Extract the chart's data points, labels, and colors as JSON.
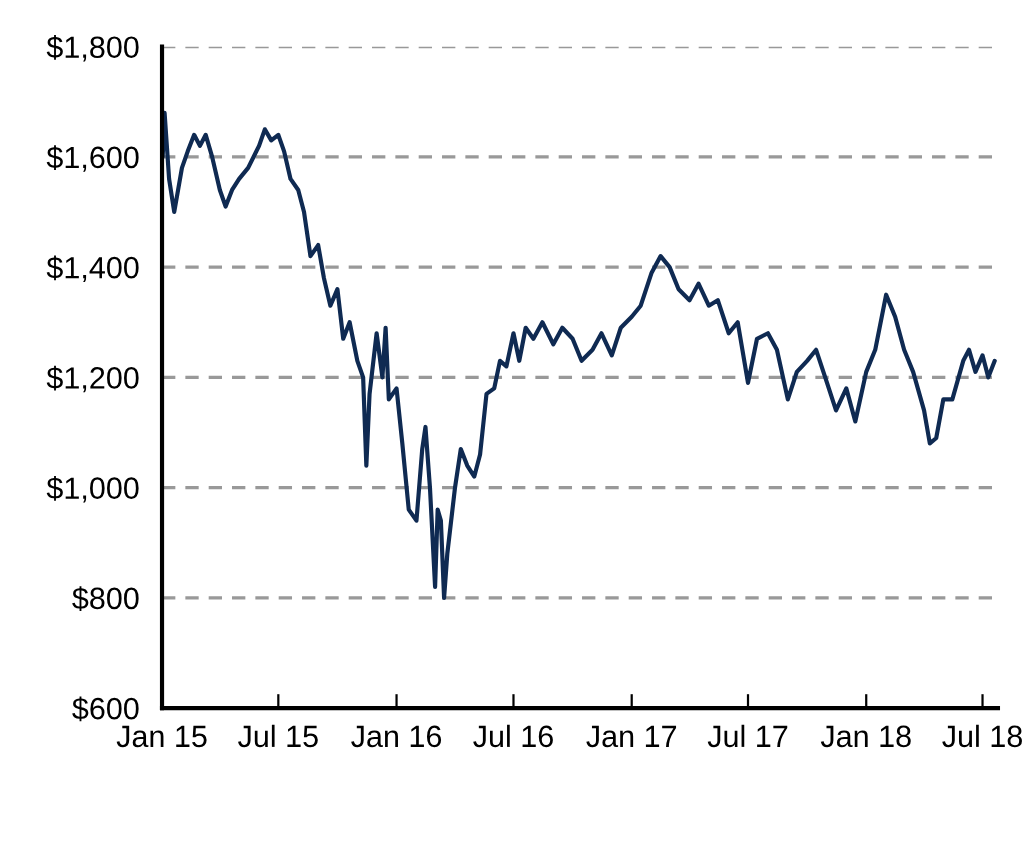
{
  "chart_data": {
    "type": "line",
    "x": [
      "2015-01-02",
      "2015-01-05",
      "2015-01-12",
      "2015-01-20",
      "2015-02-01",
      "2015-02-10",
      "2015-02-20",
      "2015-03-01",
      "2015-03-10",
      "2015-03-20",
      "2015-04-01",
      "2015-04-10",
      "2015-04-20",
      "2015-05-01",
      "2015-05-15",
      "2015-06-01",
      "2015-06-10",
      "2015-06-20",
      "2015-07-01",
      "2015-07-10",
      "2015-07-20",
      "2015-08-01",
      "2015-08-10",
      "2015-08-20",
      "2015-09-01",
      "2015-09-10",
      "2015-09-20",
      "2015-10-01",
      "2015-10-10",
      "2015-10-20",
      "2015-11-01",
      "2015-11-10",
      "2015-11-15",
      "2015-11-20",
      "2015-12-01",
      "2015-12-10",
      "2015-12-15",
      "2015-12-20",
      "2016-01-01",
      "2016-01-10",
      "2016-01-20",
      "2016-02-01",
      "2016-02-10",
      "2016-02-15",
      "2016-02-22",
      "2016-03-01",
      "2016-03-05",
      "2016-03-10",
      "2016-03-15",
      "2016-03-20",
      "2016-04-01",
      "2016-04-10",
      "2016-04-20",
      "2016-05-01",
      "2016-05-10",
      "2016-05-20",
      "2016-06-01",
      "2016-06-10",
      "2016-06-20",
      "2016-07-01",
      "2016-07-10",
      "2016-07-20",
      "2016-08-01",
      "2016-08-15",
      "2016-09-01",
      "2016-09-15",
      "2016-10-01",
      "2016-10-15",
      "2016-11-01",
      "2016-11-15",
      "2016-12-01",
      "2016-12-15",
      "2017-01-01",
      "2017-01-15",
      "2017-02-01",
      "2017-02-15",
      "2017-03-01",
      "2017-03-15",
      "2017-04-01",
      "2017-04-15",
      "2017-05-01",
      "2017-05-15",
      "2017-06-01",
      "2017-06-15",
      "2017-07-01",
      "2017-07-15",
      "2017-08-01",
      "2017-08-15",
      "2017-09-01",
      "2017-09-15",
      "2017-10-01",
      "2017-10-15",
      "2017-11-01",
      "2017-11-15",
      "2017-12-01",
      "2017-12-15",
      "2018-01-01",
      "2018-01-15",
      "2018-02-01",
      "2018-02-15",
      "2018-03-01",
      "2018-03-15",
      "2018-04-01",
      "2018-04-10",
      "2018-04-20",
      "2018-05-01",
      "2018-05-15",
      "2018-06-01",
      "2018-06-10",
      "2018-06-20",
      "2018-07-01",
      "2018-07-10",
      "2018-07-20"
    ],
    "series": [
      {
        "color": "#0f2a52",
        "values": [
          1600,
          1680,
          1560,
          1500,
          1580,
          1610,
          1640,
          1620,
          1640,
          1600,
          1540,
          1510,
          1540,
          1560,
          1580,
          1620,
          1650,
          1630,
          1640,
          1610,
          1560,
          1540,
          1500,
          1420,
          1440,
          1380,
          1330,
          1360,
          1270,
          1300,
          1230,
          1200,
          1040,
          1170,
          1280,
          1200,
          1290,
          1160,
          1180,
          1080,
          960,
          940,
          1070,
          1110,
          1000,
          820,
          960,
          940,
          800,
          880,
          1000,
          1070,
          1040,
          1020,
          1060,
          1170,
          1180,
          1230,
          1220,
          1280,
          1230,
          1290,
          1270,
          1300,
          1260,
          1290,
          1270,
          1230,
          1250,
          1280,
          1240,
          1290,
          1310,
          1330,
          1390,
          1420,
          1400,
          1360,
          1340,
          1370,
          1330,
          1340,
          1280,
          1300,
          1190,
          1270,
          1280,
          1250,
          1160,
          1210,
          1230,
          1250,
          1190,
          1140,
          1180,
          1120,
          1210,
          1250,
          1350,
          1310,
          1250,
          1210,
          1140,
          1080,
          1090,
          1160,
          1160,
          1230,
          1250,
          1210,
          1240,
          1200,
          1230
        ]
      }
    ],
    "xlim": [
      "2015-01-01",
      "2018-07-25"
    ],
    "xticks": [
      {
        "value": "2015-01-01",
        "label": "Jan 15"
      },
      {
        "value": "2015-07-01",
        "label": "Jul 15"
      },
      {
        "value": "2016-01-01",
        "label": "Jan 16"
      },
      {
        "value": "2016-07-01",
        "label": "Jul 16"
      },
      {
        "value": "2017-01-01",
        "label": "Jan 17"
      },
      {
        "value": "2017-07-01",
        "label": "Jul 17"
      },
      {
        "value": "2018-01-01",
        "label": "Jan 18"
      },
      {
        "value": "2018-07-01",
        "label": "Jul 18"
      }
    ],
    "ylim": [
      600,
      1800
    ],
    "yticks": [
      {
        "value": 600,
        "label": "$600"
      },
      {
        "value": 800,
        "label": "$800"
      },
      {
        "value": 1000,
        "label": "$1,000"
      },
      {
        "value": 1200,
        "label": "$1,200"
      },
      {
        "value": 1400,
        "label": "$1,400"
      },
      {
        "value": 1600,
        "label": "$1,600"
      },
      {
        "value": 1800,
        "label": "$1,800"
      }
    ],
    "grid": "y",
    "line_style": "solid"
  }
}
